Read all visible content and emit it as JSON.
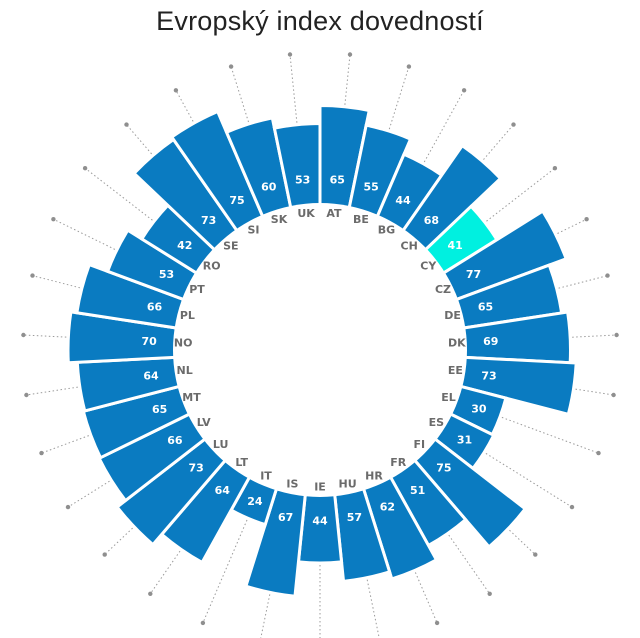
{
  "colors": {
    "bar": "#0a7bc1",
    "highlight": "#00f0e0"
  },
  "chart_data": {
    "type": "radial-bar",
    "title": "Evropský index dovedností",
    "categories": [
      "AT",
      "BE",
      "BG",
      "CH",
      "CY",
      "CZ",
      "DE",
      "DK",
      "EE",
      "EL",
      "ES",
      "FI",
      "FR",
      "HR",
      "HU",
      "IE",
      "IS",
      "IT",
      "LT",
      "LU",
      "LV",
      "MT",
      "NL",
      "NO",
      "PL",
      "PT",
      "RO",
      "SE",
      "SI",
      "SK",
      "UK"
    ],
    "values": [
      65,
      55,
      44,
      68,
      41,
      77,
      65,
      69,
      73,
      30,
      31,
      75,
      51,
      62,
      57,
      44,
      67,
      24,
      64,
      73,
      66,
      65,
      64,
      70,
      66,
      53,
      42,
      73,
      75,
      60,
      53
    ],
    "highlight": "CY",
    "ylim": [
      0,
      80
    ],
    "grid": false,
    "legend": "none"
  }
}
